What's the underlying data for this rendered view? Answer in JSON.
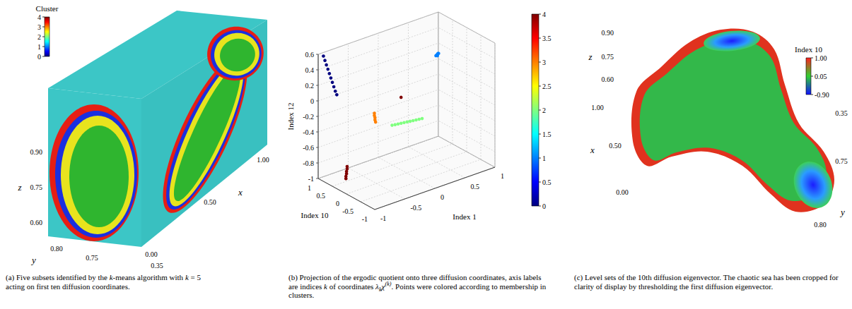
{
  "chart_data": [
    {
      "type": "volume",
      "colorbar": {
        "title": "Cluster",
        "range": [
          0,
          4
        ],
        "ticks": [
          0,
          1,
          2,
          3,
          4
        ]
      },
      "xlabel": "x",
      "ylabel": "y",
      "zlabel": "z",
      "xticks": [
        {
          "value": 0,
          "label": "0.00"
        },
        {
          "value": 0.5,
          "label": "0.50"
        },
        {
          "value": 1,
          "label": "1.00"
        }
      ],
      "yticks": [
        {
          "value": 0.8,
          "label": "0.80"
        },
        {
          "value": 0.75,
          "label": "0.75"
        },
        {
          "value": 0.35,
          "label": "0.35"
        }
      ],
      "zticks": [
        {
          "value": 0.9,
          "label": "0.90"
        },
        {
          "value": 0.75,
          "label": "0.75"
        },
        {
          "value": 0.6,
          "label": "0.60"
        }
      ],
      "caption": [
        {
          "text": "(a) Five subsets identified by the "
        },
        {
          "text": "k",
          "style": "italic"
        },
        {
          "text": "-means algorithm with "
        },
        {
          "text": "k",
          "style": "italic"
        },
        {
          "text": " = 5 acting on first ten diffusion coordinates."
        }
      ]
    },
    {
      "type": "scatter3d",
      "xlabel": "Index 1",
      "ylabel": "Index 10",
      "zlabel": "Index 12",
      "xlim": [
        -1,
        1
      ],
      "ylim": [
        -1,
        1
      ],
      "zlim": [
        -1,
        0.6
      ],
      "xticks": [
        -1,
        -0.5,
        0,
        0.5,
        1
      ],
      "yticks": [
        -1,
        -0.5,
        0,
        0.5,
        1
      ],
      "zticks": [
        -1,
        -0.8,
        -0.6,
        -0.4,
        -0.2,
        0,
        0.2,
        0.4,
        0.6
      ],
      "grid": true,
      "colorbar": {
        "range": [
          0,
          4
        ],
        "ticks": [
          0,
          0.5,
          1,
          1.5,
          2,
          2.5,
          3,
          3.5,
          4
        ]
      },
      "clusters": [
        {
          "value": 0,
          "points": [
            [
              -0.95,
              0.92,
              0.58
            ],
            [
              -0.93,
              0.91,
              0.52
            ],
            [
              -0.91,
              0.9,
              0.46
            ],
            [
              -0.89,
              0.89,
              0.4
            ],
            [
              -0.87,
              0.88,
              0.34
            ],
            [
              -0.85,
              0.87,
              0.28
            ],
            [
              -0.83,
              0.86,
              0.22
            ],
            [
              -0.81,
              0.85,
              0.16
            ],
            [
              -0.79,
              0.84,
              0.1
            ],
            [
              -0.77,
              0.83,
              0.05
            ]
          ]
        },
        {
          "value": 1,
          "points": [
            [
              0.55,
              0.1,
              0.35
            ],
            [
              0.57,
              0.12,
              0.33
            ],
            [
              0.56,
              0.08,
              0.37
            ],
            [
              0.58,
              0.1,
              0.36
            ],
            [
              0.54,
              0.11,
              0.34
            ],
            [
              0.56,
              0.1,
              0.35
            ]
          ]
        },
        {
          "value": 2,
          "points": [
            [
              -0.1,
              0.3,
              -0.42
            ],
            [
              -0.05,
              0.3,
              -0.425
            ],
            [
              0,
              0.3,
              -0.43
            ],
            [
              0.05,
              0.3,
              -0.435
            ],
            [
              0.1,
              0.3,
              -0.44
            ],
            [
              0.15,
              0.3,
              -0.445
            ],
            [
              0.2,
              0.3,
              -0.45
            ],
            [
              0.25,
              0.3,
              -0.455
            ],
            [
              0.3,
              0.3,
              -0.46
            ],
            [
              0.35,
              0.3,
              -0.465
            ],
            [
              0.4,
              0.3,
              -0.47
            ]
          ]
        },
        {
          "value": 3,
          "points": [
            [
              -0.3,
              0.5,
              -0.25
            ],
            [
              -0.3,
              0.5,
              -0.28
            ],
            [
              -0.29,
              0.5,
              -0.31
            ],
            [
              -0.29,
              0.5,
              -0.34
            ],
            [
              -0.28,
              0.5,
              -0.37
            ]
          ]
        },
        {
          "value": 4,
          "points": [
            [
              -0.75,
              0.55,
              -0.98
            ],
            [
              -0.75,
              0.55,
              -0.95
            ],
            [
              -0.74,
              0.55,
              -0.92
            ],
            [
              -0.74,
              0.55,
              -0.89
            ],
            [
              -0.73,
              0.55,
              -0.86
            ],
            [
              -0.73,
              0.55,
              -0.83
            ],
            [
              0.05,
              0.3,
              -0.1
            ]
          ]
        }
      ],
      "caption": [
        {
          "text": "(b) Projection of the ergodic quotient onto three diffusion coordinates, axis labels are indices "
        },
        {
          "text": "k",
          "style": "italic"
        },
        {
          "text": " of coordinates "
        },
        {
          "text": "λ",
          "style": "italic"
        },
        {
          "text": "k",
          "style": "sub"
        },
        {
          "text": "χ",
          "style": "italic"
        },
        {
          "text": "(k)",
          "style": "sup"
        },
        {
          "text": ". Points were colored according to membership in clusters."
        }
      ]
    },
    {
      "type": "surface",
      "colorbar": {
        "title": "Index 10",
        "range": [
          -0.9,
          1
        ],
        "ticks": [
          {
            "value": 1,
            "label": "1.00"
          },
          0.05,
          {
            "value": -0.9,
            "label": "-0.90"
          }
        ]
      },
      "xlabel": "x",
      "ylabel": "y",
      "zlabel": "z",
      "xticks": [
        {
          "value": 0,
          "label": "0.00"
        },
        {
          "value": 0.5,
          "label": "0.50"
        },
        {
          "value": 1,
          "label": "1.00"
        }
      ],
      "yticks": [
        {
          "value": 0.35,
          "label": "0.35"
        },
        {
          "value": 0.75,
          "label": "0.75"
        },
        {
          "value": 0.8,
          "label": "0.80"
        }
      ],
      "zticks": [
        {
          "value": 0.9,
          "label": "0.90"
        },
        {
          "value": 0.75,
          "label": "0.75"
        },
        {
          "value": 0.6,
          "label": "0.60"
        }
      ],
      "caption": [
        {
          "text": "(c) Level sets of the 10th diffusion eigenvector. The chaotic sea has been cropped for clarity of display by thresholding the first diffusion eigenvector."
        }
      ]
    }
  ]
}
